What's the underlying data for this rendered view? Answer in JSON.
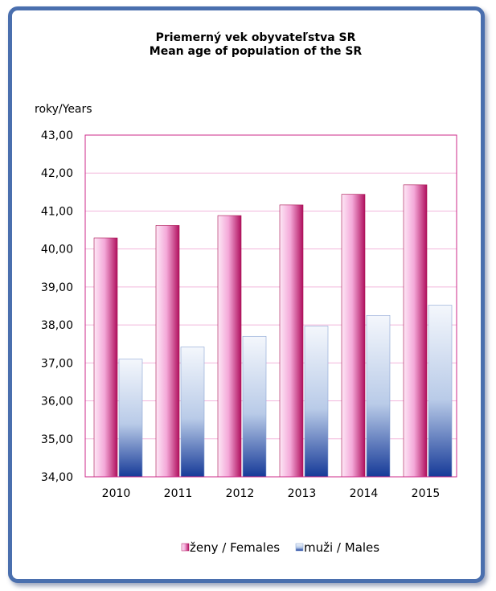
{
  "chart_data": {
    "type": "bar",
    "title": "Priemerný vek obyvateľstva SR",
    "subtitle": "Mean age of population of the SR",
    "ylabel": "roky/Years",
    "xlabel": "",
    "ylim": [
      34,
      43
    ],
    "yticks": [
      "34,00",
      "35,00",
      "36,00",
      "37,00",
      "38,00",
      "39,00",
      "40,00",
      "41,00",
      "42,00",
      "43,00"
    ],
    "categories": [
      "2010",
      "2011",
      "2012",
      "2013",
      "2014",
      "2015"
    ],
    "series": [
      {
        "name": "ženy / Females",
        "values": [
          40.29,
          40.62,
          40.88,
          41.16,
          41.44,
          41.69
        ],
        "color": "#c2185b"
      },
      {
        "name": "muži / Males",
        "values": [
          37.1,
          37.42,
          37.7,
          37.97,
          38.25,
          38.52
        ],
        "color": "#1a3a9a"
      }
    ],
    "grid": true,
    "legend_position": "bottom"
  }
}
